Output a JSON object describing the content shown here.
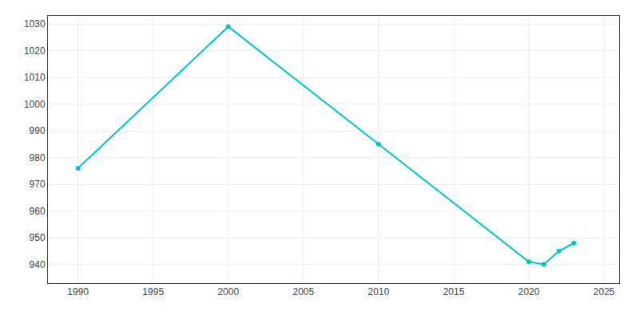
{
  "chart_data": {
    "type": "line",
    "x": [
      1990,
      2000,
      2010,
      2020,
      2021,
      2022,
      2023
    ],
    "values": [
      976,
      1029,
      985,
      941,
      940,
      945,
      948
    ],
    "color": "#00C5C5",
    "marker": "circle",
    "xlim": [
      1988,
      2026
    ],
    "ylim": [
      933,
      1033
    ],
    "xticks": [
      1990,
      1995,
      2000,
      2005,
      2010,
      2015,
      2020,
      2025
    ],
    "yticks": [
      940,
      950,
      960,
      970,
      980,
      990,
      1000,
      1010,
      1020,
      1030
    ],
    "grid": true
  }
}
